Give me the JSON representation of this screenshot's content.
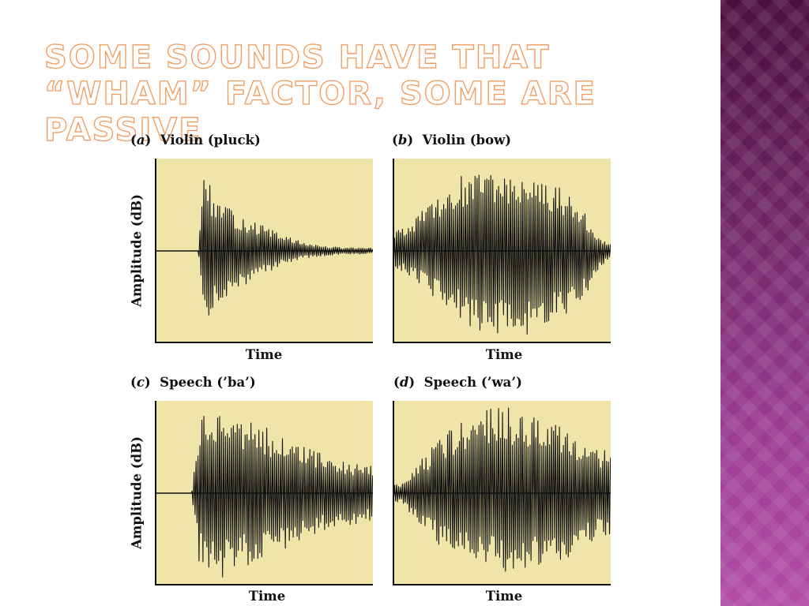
{
  "slide": {
    "title": "Some sounds have that “wham” factor, some are passive"
  },
  "colors": {
    "title_outline": "#f29a5c",
    "plot_background": "#efe5a8",
    "waveform": "#111111",
    "side_strip": "#7a2a78"
  },
  "chart_data": [
    {
      "type": "area",
      "id": "a",
      "panel_letter": "a",
      "title": "Violin (pluck)",
      "xlabel": "Time",
      "ylabel": "Amplitude (dB)",
      "x_range": [
        0,
        1
      ],
      "y_range": [
        -1,
        1
      ],
      "grid": false,
      "series": [
        {
          "description": "waveform amplitude envelope",
          "x": [
            0.0,
            0.2,
            0.22,
            0.24,
            0.28,
            0.35,
            0.45,
            0.55,
            0.65,
            0.75,
            0.85,
            1.0
          ],
          "upper": [
            0.0,
            0.0,
            0.98,
            0.8,
            0.6,
            0.45,
            0.33,
            0.22,
            0.12,
            0.06,
            0.04,
            0.03
          ],
          "lower": [
            0.0,
            0.0,
            -0.8,
            -0.75,
            -0.62,
            -0.46,
            -0.33,
            -0.2,
            -0.1,
            -0.06,
            -0.04,
            -0.03
          ]
        }
      ]
    },
    {
      "type": "area",
      "id": "b",
      "panel_letter": "b",
      "title": "Violin (bow)",
      "xlabel": "Time",
      "ylabel": "",
      "x_range": [
        0,
        1
      ],
      "y_range": [
        -1,
        1
      ],
      "grid": false,
      "series": [
        {
          "description": "waveform amplitude envelope",
          "x": [
            0.0,
            0.1,
            0.2,
            0.3,
            0.4,
            0.5,
            0.6,
            0.7,
            0.8,
            0.9,
            0.95,
            1.0
          ],
          "upper": [
            0.22,
            0.35,
            0.62,
            0.82,
            0.88,
            0.88,
            0.85,
            0.8,
            0.7,
            0.35,
            0.15,
            0.08
          ],
          "lower": [
            -0.18,
            -0.3,
            -0.55,
            -0.75,
            -0.9,
            -0.95,
            -0.95,
            -0.88,
            -0.75,
            -0.45,
            -0.2,
            -0.08
          ]
        }
      ]
    },
    {
      "type": "area",
      "id": "c",
      "panel_letter": "c",
      "title": "Speech (’ba’)",
      "xlabel": "Time",
      "ylabel": "Amplitude (dB)",
      "x_range": [
        0,
        1
      ],
      "y_range": [
        -1,
        1
      ],
      "grid": false,
      "series": [
        {
          "description": "waveform amplitude envelope",
          "x": [
            0.0,
            0.17,
            0.2,
            0.25,
            0.3,
            0.4,
            0.5,
            0.6,
            0.7,
            0.8,
            0.9,
            1.0
          ],
          "upper": [
            0.0,
            0.0,
            0.75,
            1.0,
            0.98,
            0.85,
            0.75,
            0.6,
            0.5,
            0.45,
            0.35,
            0.3
          ],
          "lower": [
            0.0,
            0.0,
            -0.75,
            -0.95,
            -0.95,
            -0.82,
            -0.75,
            -0.62,
            -0.5,
            -0.4,
            -0.35,
            -0.3
          ]
        }
      ]
    },
    {
      "type": "area",
      "id": "d",
      "panel_letter": "d",
      "title": "Speech (’wa’)",
      "xlabel": "Time",
      "ylabel": "",
      "x_range": [
        0,
        1
      ],
      "y_range": [
        -1,
        1
      ],
      "grid": false,
      "series": [
        {
          "description": "waveform amplitude envelope",
          "x": [
            0.0,
            0.05,
            0.1,
            0.15,
            0.2,
            0.3,
            0.4,
            0.5,
            0.6,
            0.7,
            0.8,
            0.9,
            1.0
          ],
          "upper": [
            0.08,
            0.12,
            0.3,
            0.42,
            0.6,
            0.8,
            0.92,
            0.98,
            0.95,
            0.85,
            0.75,
            0.55,
            0.45
          ],
          "lower": [
            -0.08,
            -0.12,
            -0.3,
            -0.42,
            -0.55,
            -0.75,
            -0.82,
            -0.88,
            -0.85,
            -0.82,
            -0.72,
            -0.55,
            -0.45
          ]
        }
      ]
    }
  ]
}
